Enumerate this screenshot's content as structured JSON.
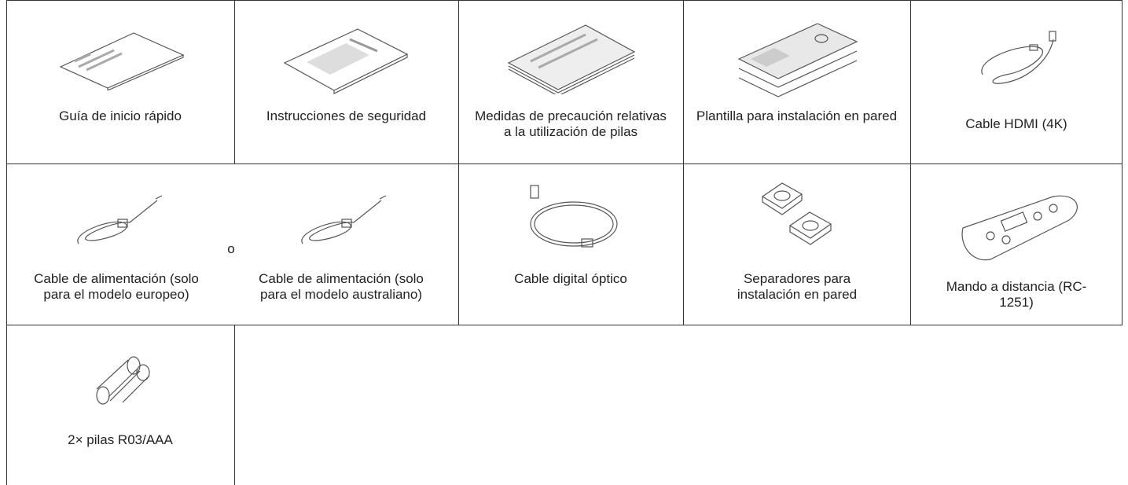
{
  "rows": [
    [
      "Guía de inicio rápido",
      "Instrucciones de seguridad",
      "Medidas de precaución relativas a la utilización de pilas",
      "Plantilla para instalación en pared",
      "Cable HDMI (4K)"
    ],
    [
      "Cable de alimentación (solo para el modelo europeo)",
      "Cable de alimentación (solo para el modelo australiano)",
      "Cable digital óptico",
      "Separadores para instalación en pared",
      "Mando a distancia (RC-1251)"
    ],
    [
      "2× pilas R03/AAA"
    ]
  ],
  "or": "o"
}
